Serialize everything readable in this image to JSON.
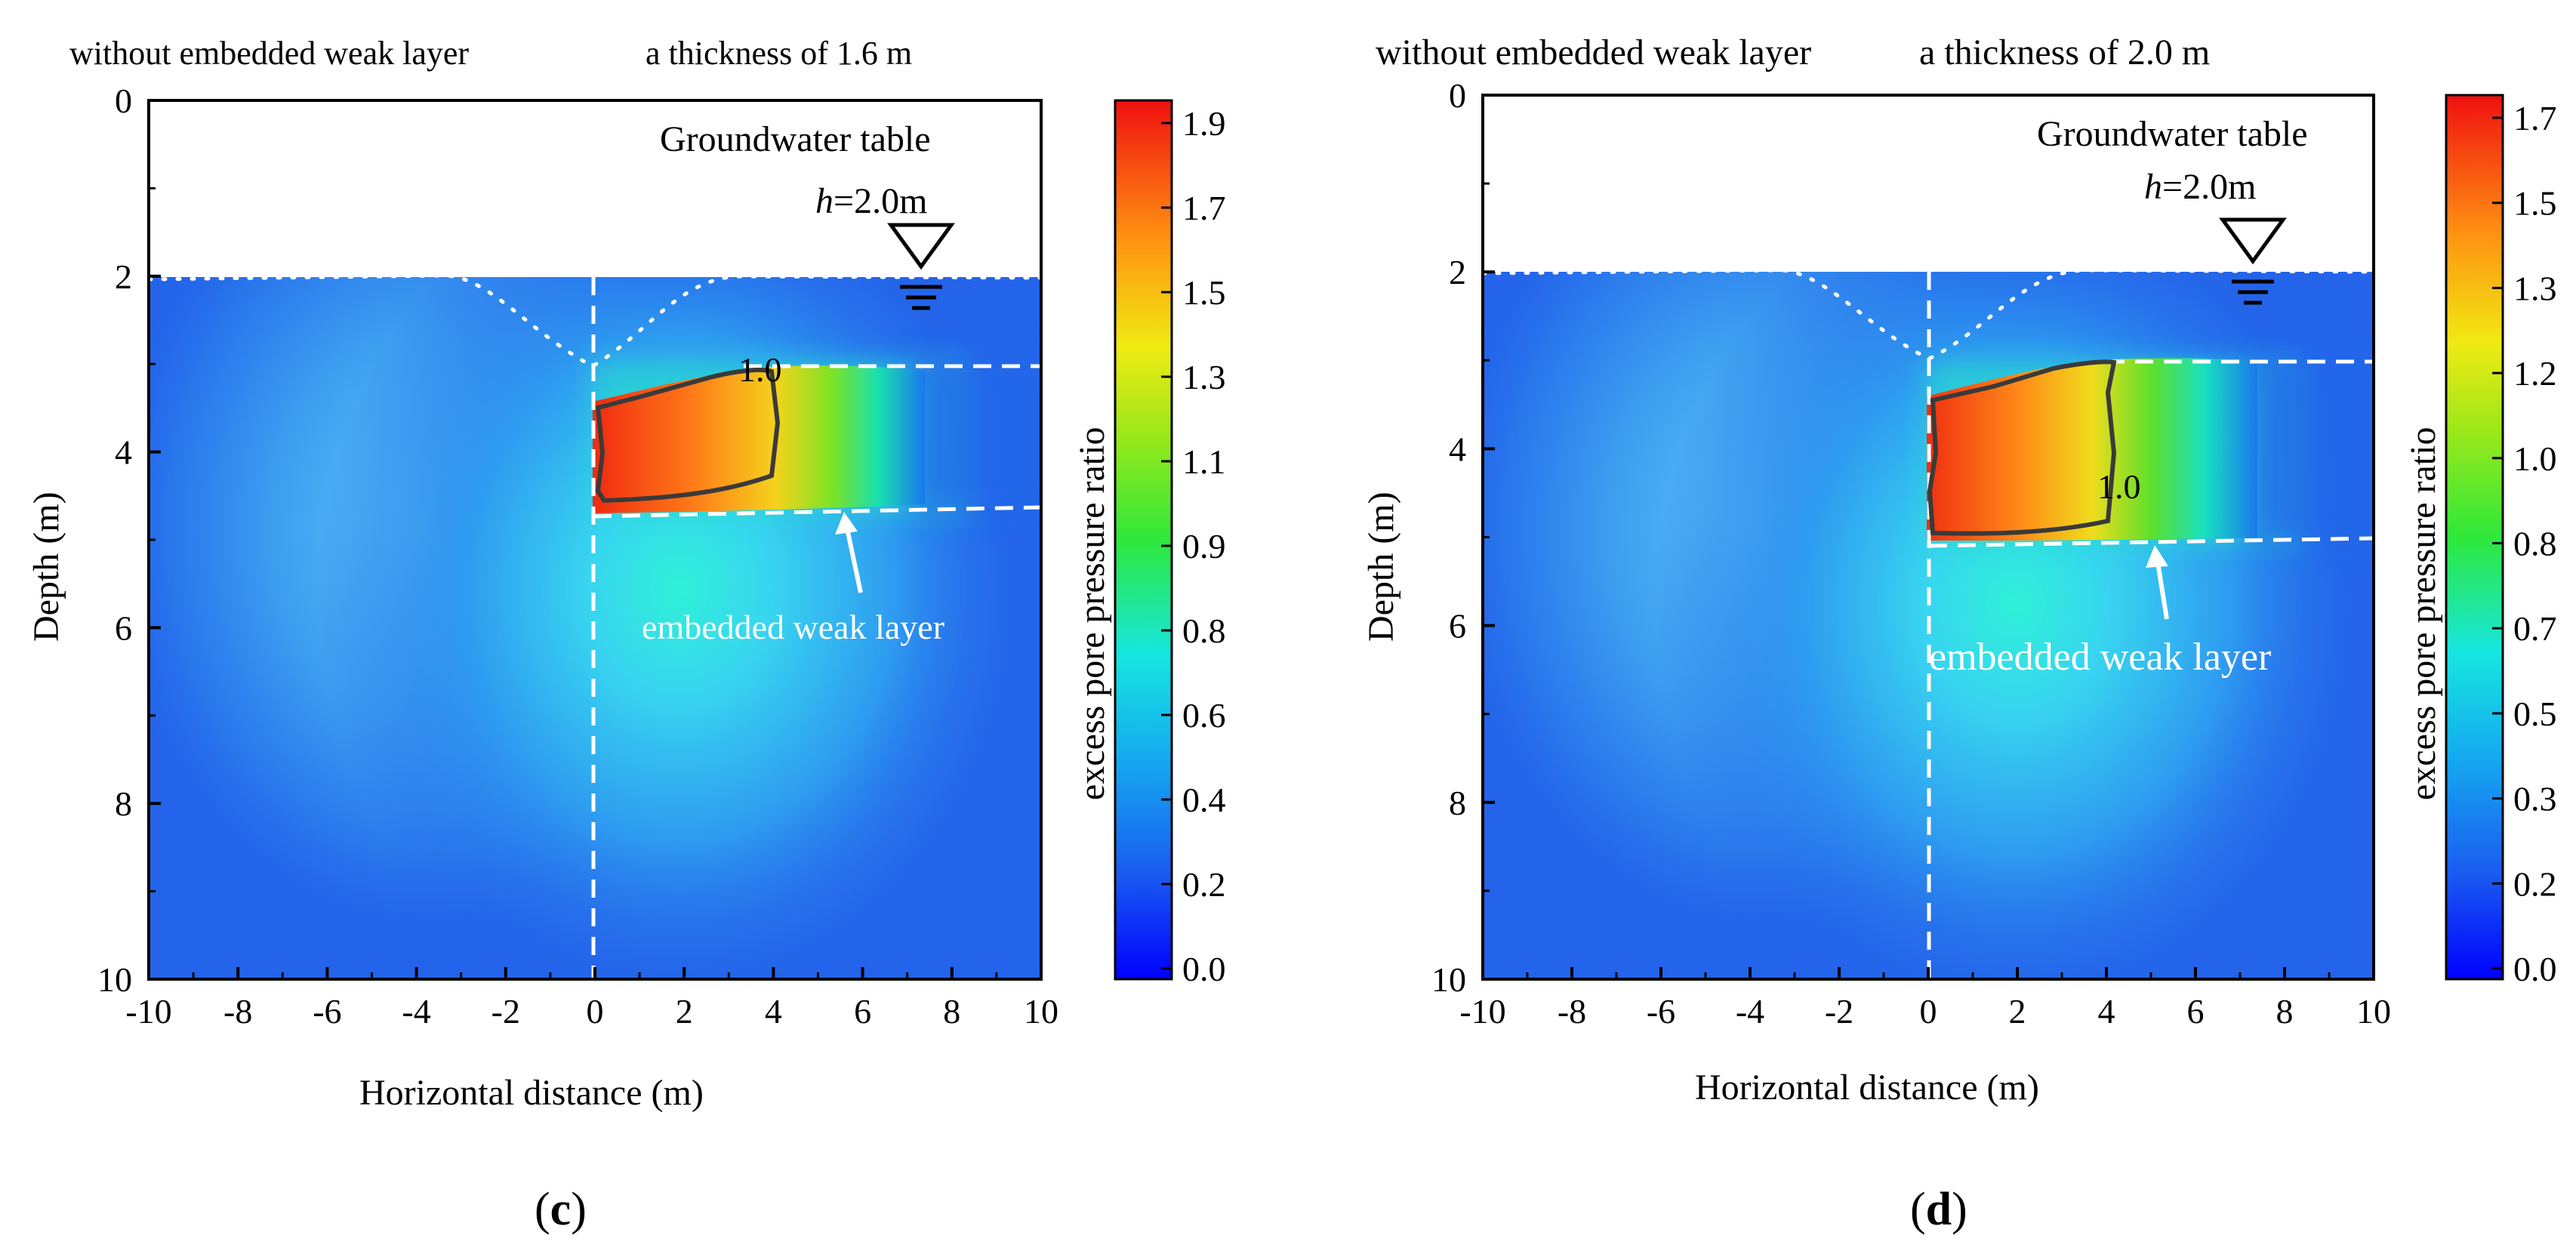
{
  "figure": {
    "panels": [
      {
        "panel_label": "c",
        "header_left": "without embedded weak layer",
        "header_right": "a thickness of 1.6 m",
        "groundwater_label": "Groundwater table",
        "h_symbol": "h",
        "h_value": "=2.0m",
        "contour_label": "1.0",
        "weak_layer_label": "embedded weak layer",
        "colorbar_label": "excess pore pressure ratio",
        "colorbar_ticks": [
          "1.9",
          "1.7",
          "1.5",
          "1.3",
          "1.1",
          "0.9",
          "0.8",
          "0.6",
          "0.4",
          "0.2",
          "0.0"
        ]
      },
      {
        "panel_label": "d",
        "header_left": "without embedded weak layer",
        "header_right": "a thickness of 2.0 m",
        "groundwater_label": "Groundwater table",
        "h_symbol": "h",
        "h_value": "=2.0m",
        "contour_label": "1.0",
        "weak_layer_label": "embedded weak layer",
        "colorbar_label": "excess pore pressure ratio",
        "colorbar_ticks": [
          "1.7",
          "1.5",
          "1.3",
          "1.2",
          "1.0",
          "0.8",
          "0.7",
          "0.5",
          "0.3",
          "0.2",
          "0.0"
        ]
      }
    ]
  },
  "chart_data": [
    {
      "type": "heatmap",
      "title": "without embedded weak layer   a thickness of 1.6 m",
      "xlabel": "Horizontal distance  (m)",
      "ylabel": "Depth (m)",
      "xlim": [
        -10,
        10
      ],
      "ylim": [
        10,
        0
      ],
      "x_ticks": [
        "-10",
        "-8",
        "-6",
        "-4",
        "-2",
        "0",
        "2",
        "4",
        "6",
        "8",
        "10"
      ],
      "y_ticks": [
        "0",
        "2",
        "4",
        "6",
        "8",
        "10"
      ],
      "x_tick_values": [
        -10,
        -8,
        -6,
        -4,
        -2,
        0,
        2,
        4,
        6,
        8,
        10
      ],
      "y_tick_values": [
        0,
        2,
        4,
        6,
        8,
        10
      ],
      "colorbar_range": [
        0.0,
        1.9
      ],
      "groundwater_depth": 2.0,
      "weak_layer_top": 3.0,
      "weak_layer_bottom": 4.6,
      "weak_layer_x_range": [
        0,
        10
      ],
      "contour_value": 1.0,
      "contour_label_x": 3.9,
      "contour_label_y": 3.0,
      "liquefied_zone": [
        [
          0,
          3.4
        ],
        [
          2,
          3.1
        ],
        [
          3.8,
          3.3
        ],
        [
          4,
          4.3
        ],
        [
          2.5,
          4.6
        ],
        [
          0.2,
          4.5
        ]
      ],
      "peak_ratio": 1.9
    },
    {
      "type": "heatmap",
      "title": "without embedded weak layer a thickness of 2.0 m",
      "xlabel": "Horizontal distance  (m)",
      "ylabel": "Depth (m)",
      "xlim": [
        -10,
        10
      ],
      "ylim": [
        10,
        0
      ],
      "x_ticks": [
        "-10",
        "-8",
        "-6",
        "-4",
        "-2",
        "0",
        "2",
        "4",
        "6",
        "8",
        "10"
      ],
      "y_ticks": [
        "0",
        "2",
        "4",
        "6",
        "8",
        "10"
      ],
      "x_tick_values": [
        -10,
        -8,
        -6,
        -4,
        -2,
        0,
        2,
        4,
        6,
        8,
        10
      ],
      "y_tick_values": [
        0,
        2,
        4,
        6,
        8,
        10
      ],
      "colorbar_range": [
        0.0,
        1.7
      ],
      "groundwater_depth": 2.0,
      "weak_layer_top": 3.0,
      "weak_layer_bottom": 5.0,
      "weak_layer_x_range": [
        0,
        10
      ],
      "contour_value": 1.0,
      "contour_label_x": 4.0,
      "contour_label_y": 4.4,
      "liquefied_zone": [
        [
          0,
          3.4
        ],
        [
          2.5,
          3.0
        ],
        [
          3.7,
          3.0
        ],
        [
          3.9,
          4.7
        ],
        [
          2.5,
          5.0
        ],
        [
          0.1,
          4.9
        ]
      ],
      "peak_ratio": 1.7
    }
  ]
}
